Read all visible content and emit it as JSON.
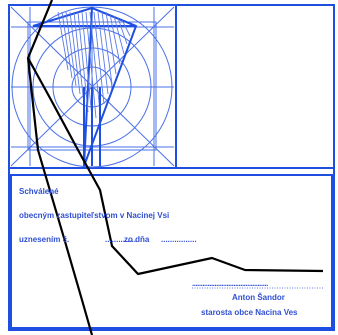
{
  "approval": {
    "heading": "Schválené",
    "council_line": "obecným zastupiteľstvom v Nacinej Vsi",
    "resolution_prefix": "uznesením č.",
    "resolution_number_dots": "..............",
    "date_prefix": "zo dňa",
    "date_dots": "................"
  },
  "signature": {
    "line": "............................................",
    "name": "Anton  Šandor",
    "title": "starosta  obce  Nacina  Ves"
  },
  "colors": {
    "frame": "#1f4fe0",
    "thin_lines": "#4a70e8",
    "hatch": "#5a7ae8",
    "text": "#2f4fd1",
    "boundary": "#000000"
  },
  "icons": {
    "emblem": "concentric-circles-triangle-emblem",
    "boundary": "black-boundary-polyline"
  }
}
